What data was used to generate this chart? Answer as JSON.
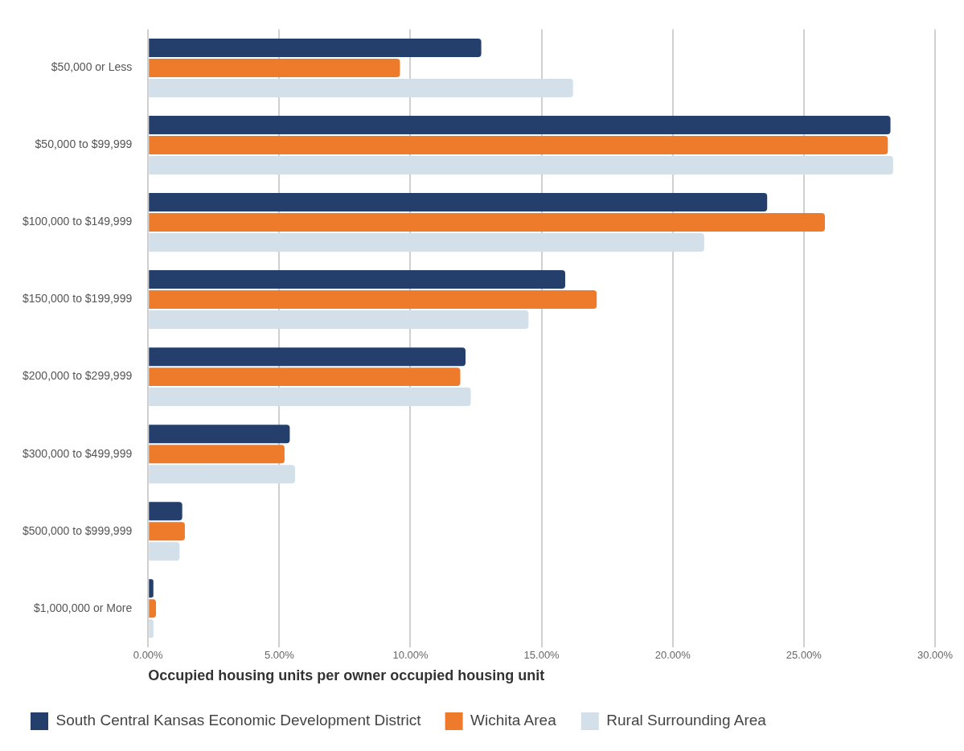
{
  "chart_data": {
    "type": "bar",
    "orientation": "horizontal",
    "xlabel": "Occupied housing units per owner occupied housing unit",
    "categories": [
      "$50,000 or Less",
      "$50,000 to $99,999",
      "$100,000 to $149,999",
      "$150,000 to $199,999",
      "$200,000 to $299,999",
      "$300,000 to $499,999",
      "$500,000 to $999,999",
      "$1,000,000 or More"
    ],
    "series": [
      {
        "name": "South Central Kansas Economic Development District",
        "color": "#253f6c",
        "values": [
          12.7,
          28.3,
          23.6,
          15.9,
          12.1,
          5.4,
          1.3,
          0.2
        ]
      },
      {
        "name": "Wichita Area",
        "color": "#ee7b2c",
        "values": [
          9.6,
          28.2,
          25.8,
          17.1,
          11.9,
          5.2,
          1.4,
          0.3
        ]
      },
      {
        "name": "Rural Surrounding Area",
        "color": "#d3e0ea",
        "values": [
          16.2,
          28.4,
          21.2,
          14.5,
          12.3,
          5.6,
          1.2,
          0.2
        ]
      }
    ],
    "xlim": [
      0,
      30
    ],
    "xticks": [
      {
        "value": 0,
        "label": "0.00%"
      },
      {
        "value": 5,
        "label": "5.00%"
      },
      {
        "value": 10,
        "label": "10.00%"
      },
      {
        "value": 15,
        "label": "15.00%"
      },
      {
        "value": 20,
        "label": "20.00%"
      },
      {
        "value": 25,
        "label": "25.00%"
      },
      {
        "value": 30,
        "label": "30.00%"
      }
    ],
    "grid": "x",
    "legend": "bottom"
  }
}
